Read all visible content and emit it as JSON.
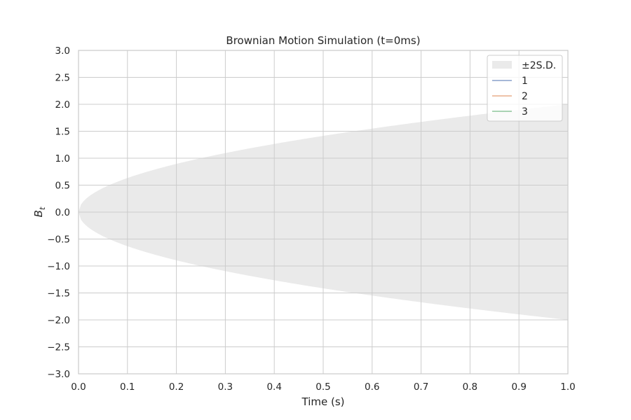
{
  "chart_data": {
    "type": "area",
    "title": "Brownian Motion Simulation (t=0ms)",
    "xlabel": "Time (s)",
    "ylabel_main": "B",
    "ylabel_sub": "t",
    "xlim": [
      0.0,
      1.0
    ],
    "ylim": [
      -3.0,
      3.0
    ],
    "xticks": [
      "0.0",
      "0.1",
      "0.2",
      "0.3",
      "0.4",
      "0.5",
      "0.6",
      "0.7",
      "0.8",
      "0.9",
      "1.0"
    ],
    "yticks": [
      "3.0",
      "2.5",
      "2.0",
      "1.5",
      "1.0",
      "0.5",
      "0.0",
      "−0.5",
      "−1.0",
      "−1.5",
      "−2.0",
      "−2.5",
      "−3.0"
    ],
    "grid": true,
    "legend_position": "top-right",
    "band": {
      "name": "±2S.D.",
      "description_formula": "±2·sqrt(t)",
      "color": "#eaeaea"
    },
    "series": [
      {
        "name": "1",
        "color": "#4c72b0",
        "values": []
      },
      {
        "name": "2",
        "color": "#dd8452",
        "values": []
      },
      {
        "name": "3",
        "color": "#55a868",
        "values": []
      }
    ]
  }
}
